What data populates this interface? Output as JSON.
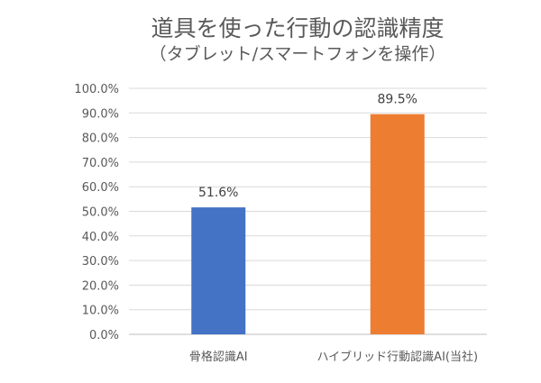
{
  "chart_data": {
    "type": "bar",
    "title": "道具を使った行動の認識精度",
    "subtitle": "（タブレット/スマートフォンを操作）",
    "categories": [
      "骨格認識AI",
      "ハイブリッド行動認識AI(当社)"
    ],
    "values": [
      51.6,
      89.5
    ],
    "data_labels": [
      "51.6%",
      "89.5%"
    ],
    "colors": [
      "#4472C4",
      "#ED7D31"
    ],
    "ylim": [
      0,
      100
    ],
    "yticks": [
      "0.0%",
      "10.0%",
      "20.0%",
      "30.0%",
      "40.0%",
      "50.0%",
      "60.0%",
      "70.0%",
      "80.0%",
      "90.0%",
      "100.0%"
    ],
    "xlabel": "",
    "ylabel": "",
    "grid": true,
    "legend": "none"
  }
}
